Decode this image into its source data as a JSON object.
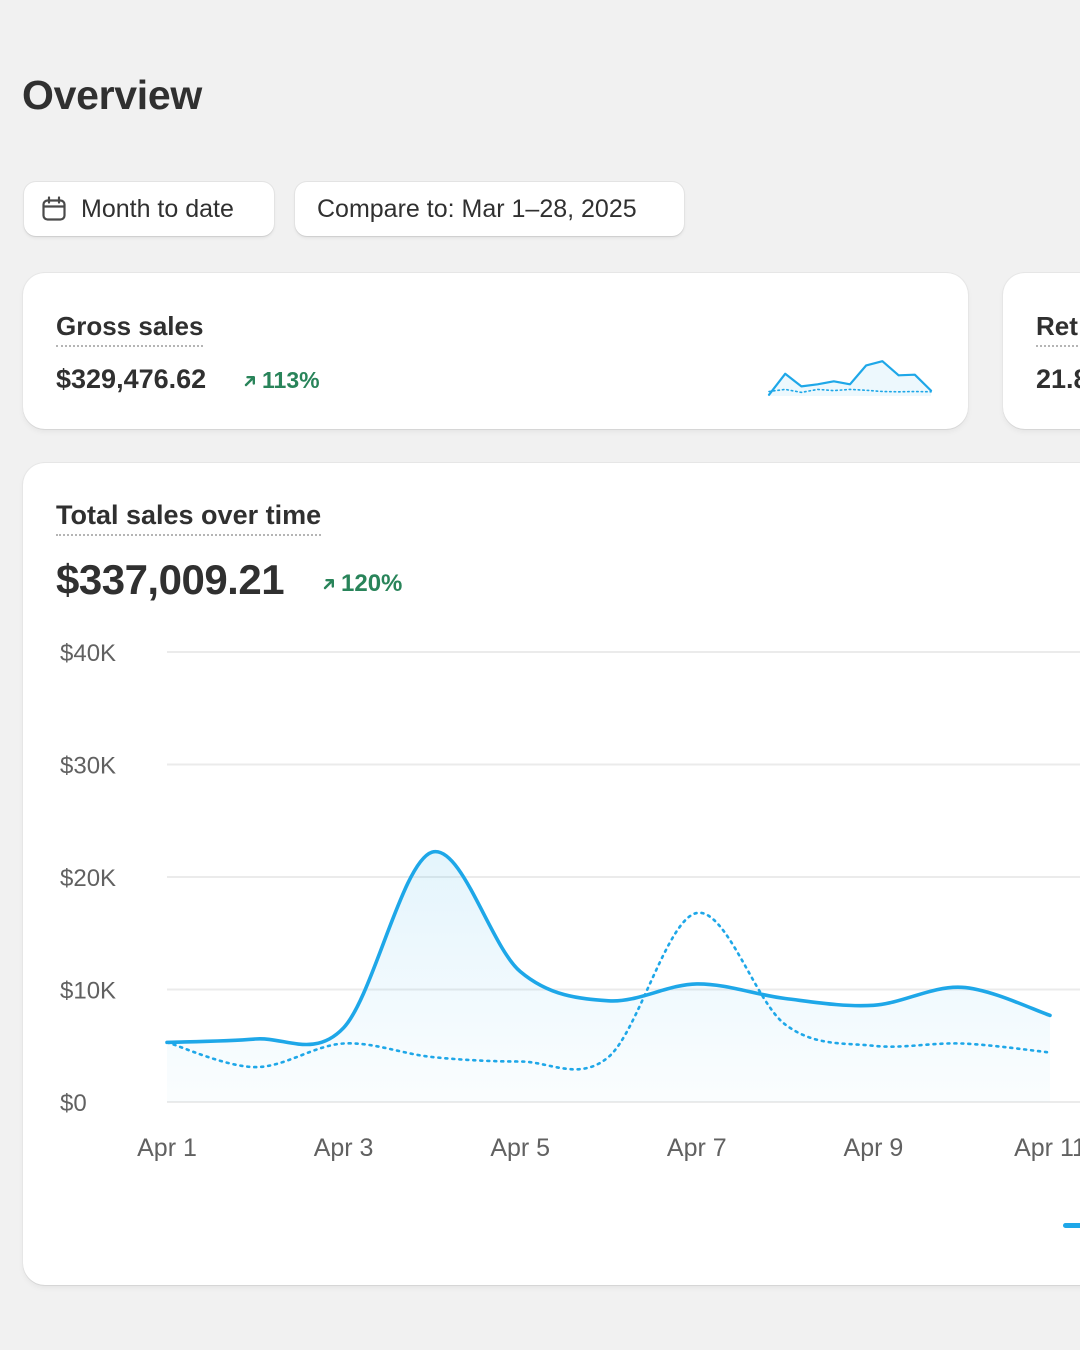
{
  "header": {
    "title": "Overview"
  },
  "filters": {
    "date_range_label": "Month to date",
    "compare_label": "Compare to: Mar 1–28, 2025"
  },
  "metrics": [
    {
      "label": "Gross sales",
      "value": "$329,476.62",
      "delta": "113%",
      "trend": "up"
    },
    {
      "label": "Ret",
      "value": "21.8",
      "trend": "unknown"
    }
  ],
  "icons": {
    "calendar": "calendar-icon",
    "delta_arrow": "arrow-up-right-icon"
  },
  "colors": {
    "accent": "#1ea7e8",
    "positive": "#29845a",
    "background": "#f1f1f1",
    "card": "#ffffff"
  },
  "sales_chart": {
    "title": "Total sales over time",
    "total": "$337,009.21",
    "delta": "120%",
    "trend": "up"
  },
  "chart_data": [
    {
      "type": "line",
      "title": "Total sales over time",
      "x_axis": "date",
      "x": [
        "Apr 1",
        "Apr 2",
        "Apr 3",
        "Apr 4",
        "Apr 5",
        "Apr 6",
        "Apr 7",
        "Apr 8",
        "Apr 9",
        "Apr 10",
        "Apr 11"
      ],
      "x_ticks": [
        "Apr 1",
        "Apr 3",
        "Apr 5",
        "Apr 7",
        "Apr 9",
        "Apr 11"
      ],
      "y_ticks": [
        "$0",
        "$10K",
        "$20K",
        "$30K",
        "$40K"
      ],
      "ylim": [
        0,
        40000
      ],
      "grid": true,
      "series": [
        {
          "style": "solid",
          "fill": true,
          "values": [
            5300,
            5600,
            6600,
            22200,
            11600,
            9000,
            10500,
            9200,
            8600,
            10200,
            7700
          ]
        },
        {
          "style": "dotted",
          "fill": false,
          "values": [
            5300,
            3100,
            5200,
            4000,
            3600,
            4000,
            16800,
            6900,
            5000,
            5200,
            4400
          ]
        }
      ]
    },
    {
      "type": "line",
      "series": [
        {
          "style": "solid",
          "fill": true,
          "values": [
            0.4,
            7.4,
            3.2,
            3.9,
            4.9,
            3.9,
            10.2,
            11.6,
            6.9,
            7.1,
            1.8
          ]
        },
        {
          "style": "dotted",
          "fill": false,
          "values": [
            1.5,
            2.2,
            1.2,
            2.2,
            1.8,
            2.2,
            1.9,
            1.5,
            1.4,
            1.5,
            1.4
          ]
        }
      ]
    }
  ]
}
